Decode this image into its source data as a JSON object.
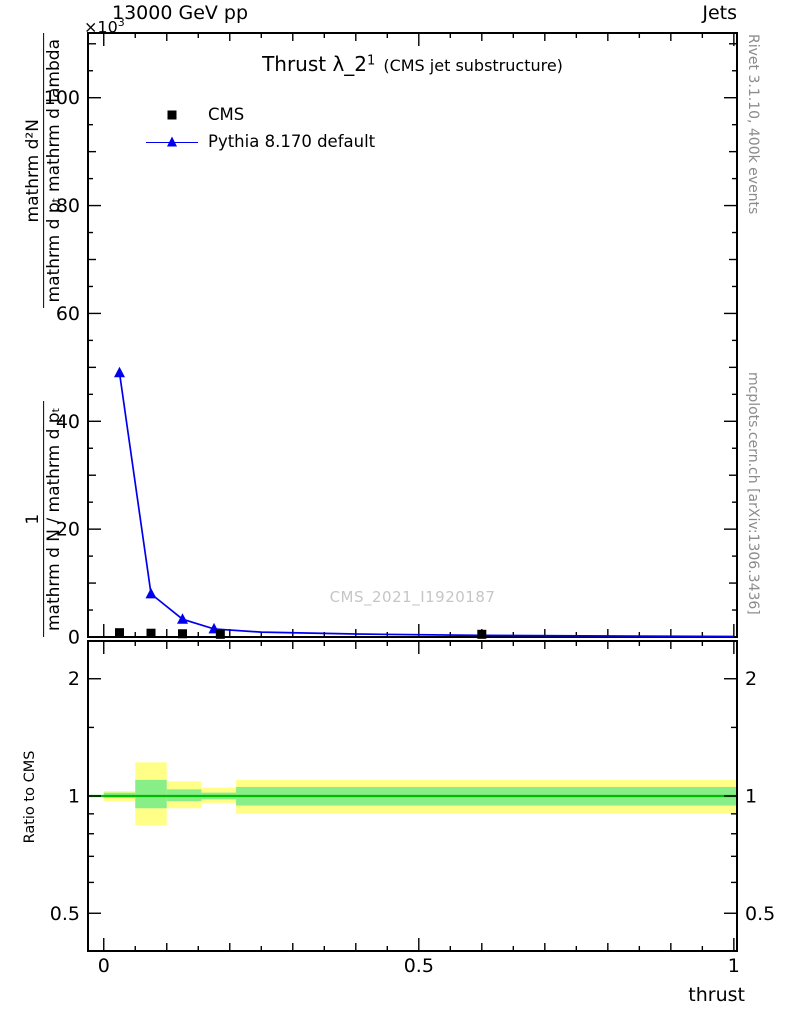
{
  "header": {
    "left": "13000 GeV pp",
    "right": "Jets"
  },
  "plot": {
    "title": "Thrust λ_2",
    "title_sup": "1",
    "title_suffix": "(CMS jet substructure)",
    "multiplier_base": "×10",
    "multiplier_exp": "3",
    "watermark": "CMS_2021_I1920187",
    "ylabel_frac1_num": "1",
    "ylabel_frac1_den": "mathrm d N / mathrm d pₜ",
    "ylabel_frac2_num": "mathrm d²N",
    "ylabel_frac2_den": "mathrm d pₜ mathrm d lambda"
  },
  "legend": {
    "items": [
      {
        "label": "CMS"
      },
      {
        "label": "Pythia 8.170 default"
      }
    ]
  },
  "side_labels": {
    "top": "Rivet 3.1.10,  400k events",
    "bottom": "mcplots.cern.ch [arXiv:1306.3436]"
  },
  "chart_data": {
    "type": "line",
    "title": "Thrust λ_2¹ (CMS jet substructure)",
    "xlabel": "thrust",
    "ylabel": "1/(mathrm dN/mathrm dp_T) mathrm d²N/(mathrm dp_T mathrm d lambda)",
    "y_multiplier": "×10³",
    "xlim": [
      -0.025,
      1.005
    ],
    "xticks": [
      0,
      0.5,
      1
    ],
    "grid": false,
    "legend_position": "top-left",
    "main_panel": {
      "ylim": [
        0,
        112
      ],
      "yticks": [
        0,
        20,
        40,
        60,
        80,
        100
      ],
      "series": [
        {
          "name": "CMS",
          "type": "scatter",
          "marker": "square",
          "color": "#000000",
          "x": [
            0.025,
            0.075,
            0.125,
            0.185,
            0.6
          ],
          "y": [
            0.8,
            0.7,
            0.6,
            0.5,
            0.5
          ]
        },
        {
          "name": "Pythia 8.170 default",
          "type": "line",
          "marker": "triangle",
          "color": "#0000ee",
          "x": [
            0.025,
            0.075,
            0.125,
            0.175,
            0.25,
            0.4,
            0.6,
            1.0
          ],
          "y": [
            49,
            8,
            3.3,
            1.5,
            0.9,
            0.55,
            0.3,
            0.1
          ],
          "marker_x": [
            0.025,
            0.075,
            0.125,
            0.175
          ],
          "marker_y": [
            49,
            8,
            3.3,
            1.5
          ]
        }
      ]
    },
    "ratio_panel": {
      "label": "Ratio to CMS",
      "scale": "log",
      "ylim": [
        0.4,
        2.5
      ],
      "yticks": [
        0.5,
        1,
        2
      ],
      "yticks_minor": [
        0.6,
        0.7,
        0.8,
        0.9,
        1.5
      ],
      "reference_line": {
        "y": 1,
        "color": "#00bb00"
      },
      "band_colors": {
        "outer": "#ffff88",
        "inner": "#88ee88"
      },
      "bands": [
        {
          "x0": 0.0,
          "x1": 0.05,
          "outer_lo": 0.97,
          "outer_hi": 1.03,
          "inner_lo": 0.99,
          "inner_hi": 1.02
        },
        {
          "x0": 0.05,
          "x1": 0.1,
          "outer_lo": 0.84,
          "outer_hi": 1.22,
          "inner_lo": 0.93,
          "inner_hi": 1.1
        },
        {
          "x0": 0.1,
          "x1": 0.155,
          "outer_lo": 0.93,
          "outer_hi": 1.09,
          "inner_lo": 0.97,
          "inner_hi": 1.04
        },
        {
          "x0": 0.155,
          "x1": 0.21,
          "outer_lo": 0.96,
          "outer_hi": 1.05,
          "inner_lo": 0.98,
          "inner_hi": 1.02
        },
        {
          "x0": 0.21,
          "x1": 1.005,
          "outer_lo": 0.9,
          "outer_hi": 1.1,
          "inner_lo": 0.945,
          "inner_hi": 1.055
        }
      ]
    }
  }
}
